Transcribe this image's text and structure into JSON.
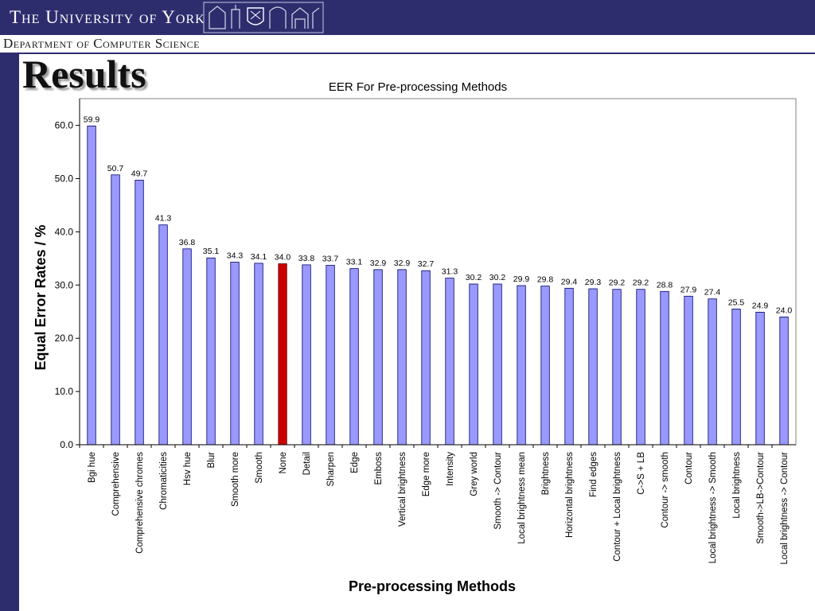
{
  "header": {
    "university": "The University of York",
    "department": "Department of Computer Science"
  },
  "slide": {
    "title": "Results"
  },
  "colors": {
    "banner": "#2d2d6e",
    "bar": "#9999ff",
    "bar_highlight": "#cc0000",
    "plot_border": "#808080"
  },
  "chart_data": {
    "type": "bar",
    "title": "EER For Pre-processing Methods",
    "xlabel": "Pre-processing Methods",
    "ylabel": "Equal Error Rates / %",
    "ylim": [
      0,
      65
    ],
    "yticks": [
      "0.0",
      "10.0",
      "20.0",
      "30.0",
      "40.0",
      "50.0",
      "60.0"
    ],
    "grid": false,
    "legend": "none",
    "highlight_category": "None",
    "categories": [
      "Bgi hue",
      "Comprehensive",
      "Comprehensive chromes",
      "Chromaticities",
      "Hsv hue",
      "Blur",
      "Smooth more",
      "Smooth",
      "None",
      "Detail",
      "Sharpen",
      "Edge",
      "Emboss",
      "Vertical brightness",
      "Edge more",
      "Intensity",
      "Grey world",
      "Smooth -> Contour",
      "Local brightness mean",
      "Brightness",
      "Horizontal brightness",
      "Find edges",
      "Contour + Local brightness",
      "C->S + LB",
      "Contour -> smooth",
      "Contour",
      "Local brightness -> Smooth",
      "Local brightness",
      "Smooth->LB->Contour",
      "Local brightness -> Contour"
    ],
    "values": [
      59.9,
      50.7,
      49.7,
      41.3,
      36.8,
      35.1,
      34.3,
      34.1,
      34.0,
      33.8,
      33.7,
      33.1,
      32.9,
      32.9,
      32.7,
      31.3,
      30.2,
      30.2,
      29.9,
      29.8,
      29.4,
      29.3,
      29.2,
      29.2,
      28.8,
      27.9,
      27.4,
      25.5,
      24.9,
      24.0
    ]
  }
}
